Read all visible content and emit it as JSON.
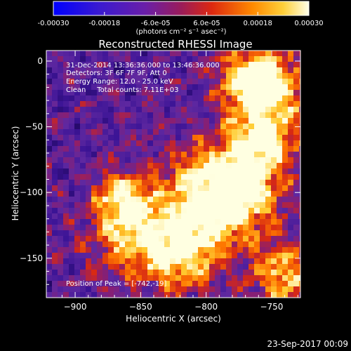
{
  "colorbar": {
    "tick_labels": [
      "-0.00030",
      "-0.00018",
      "-6.0e-05",
      "6.0e-05",
      "0.00018",
      "0.00030"
    ],
    "tick_values": [
      -0.0003,
      -0.00018,
      -6e-05,
      6e-05,
      0.00018,
      0.0003
    ],
    "range": [
      -0.0003,
      0.0003
    ],
    "unit_label": "(photons cm⁻² s⁻¹ asec⁻²)",
    "colors": [
      "#0000ff",
      "#5a1aa6",
      "#7a2a8a",
      "#c62a1a",
      "#ff7a00",
      "#ffd23a",
      "#ffffe0"
    ]
  },
  "chart_data": {
    "type": "heatmap",
    "title": "Reconstructed RHESSI Image",
    "xlabel": "Heliocentric X (arcsec)",
    "ylabel": "Heliocentric Y (arcsec)",
    "xlim": [
      -922,
      -728
    ],
    "ylim": [
      -180,
      8
    ],
    "xticks": [
      -900,
      -850,
      -800,
      -750
    ],
    "xtick_labels": [
      "−900",
      "−850",
      "−800",
      "−750"
    ],
    "yticks": [
      0,
      -50,
      -100,
      -150
    ],
    "ytick_labels": [
      "0",
      "−50",
      "−100",
      "−150"
    ],
    "grid": false,
    "annotations": [
      "31-Dec-2014 13:36:36.000 to 13:46:36.000",
      "Detectors: 3F 6F 7F 9F, Att 0",
      "Energy Range: 12.0 - 25.0 keV",
      "Clean     Total counts: 7.11E+03"
    ],
    "peak_label": "Position of Peak = [-742,-19]",
    "peak": [
      -742,
      -19
    ]
  },
  "footer": {
    "timestamp": "23-Sep-2017 00:09"
  }
}
